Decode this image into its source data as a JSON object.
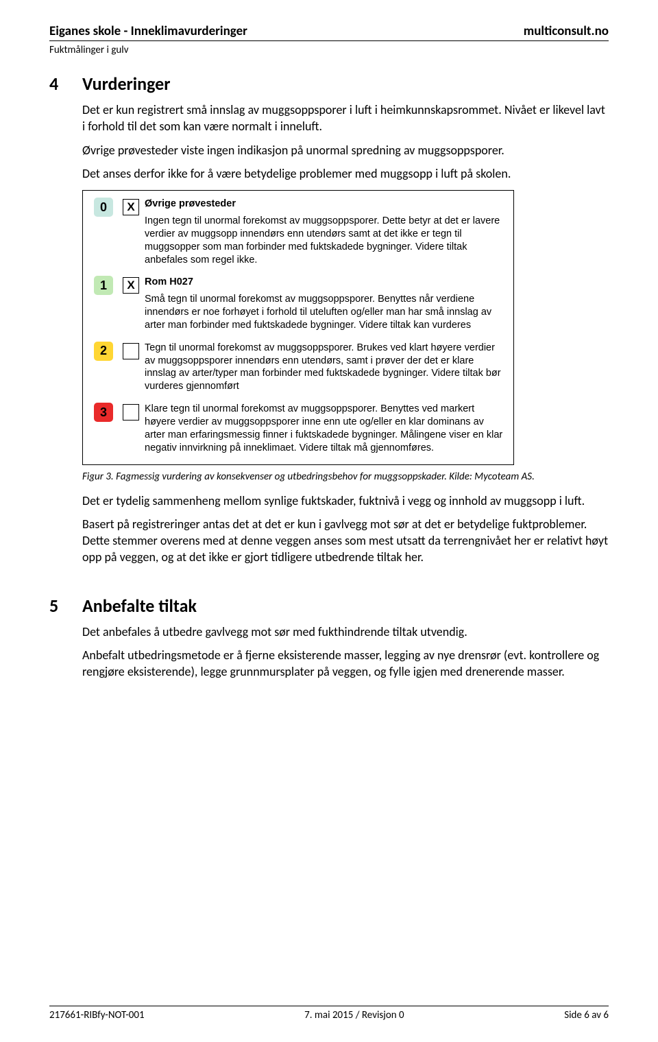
{
  "header": {
    "title_left": "Eiganes skole - Inneklimavurderinger",
    "title_right": "multiconsult.no",
    "subtitle": "Fuktmålinger i gulv"
  },
  "section4": {
    "number": "4",
    "title": "Vurderinger",
    "p1": "Det er kun registrert små innslag av muggsoppsporer i luft i heimkunnskapsrommet. Nivået er likevel lavt i forhold til det som kan være normalt i inneluft.",
    "p2": "Øvrige prøvesteder viste ingen indikasjon på unormal spredning av muggsoppsporer.",
    "p3": "Det anses derfor ikke for å være betydelige problemer med muggsopp i luft på skolen.",
    "caption": "Figur 3. Fagmessig vurdering av konsekvenser og utbedringsbehov for muggsoppskader. Kilde: Mycoteam AS.",
    "p4": "Det er tydelig sammenheng mellom synlige fuktskader, fuktnivå i vegg og innhold av muggsopp i luft.",
    "p5": "Basert på registreringer antas det at det er kun i gavlvegg mot sør at det er betydelige fuktproblemer. Dette stemmer overens med at denne veggen anses som mest utsatt da terrengnivået her er relativt høyt opp på veggen, og at det ikke er gjort tidligere utbedrende tiltak her."
  },
  "figure": {
    "rows": [
      {
        "badge": "0",
        "badge_bg": "#c7e7e0",
        "checked": true,
        "label": "Øvrige prøvesteder",
        "desc": "Ingen tegn til unormal forekomst av muggsoppsporer. Dette betyr at det er lavere verdier av muggsopp innendørs enn utendørs samt at det ikke er tegn til muggsopper som man forbinder med fuktskadede bygninger. Videre tiltak anbefales som regel ikke."
      },
      {
        "badge": "1",
        "badge_bg": "#c1e9b4",
        "checked": true,
        "label": "Rom H027",
        "desc": "Små tegn til unormal forekomst av muggsoppsporer. Benyttes når verdiene innendørs er noe forhøyet i forhold til uteluften og/eller man har små innslag av arter man forbinder med fuktskadede bygninger. Videre tiltak kan vurderes"
      },
      {
        "badge": "2",
        "badge_bg": "#ffd633",
        "checked": false,
        "label": "",
        "desc": "Tegn til unormal forekomst av muggsoppsporer. Brukes ved klart høyere verdier av muggsoppsporer innendørs enn utendørs, samt i prøver der det er klare innslag av arter/typer man forbinder med fuktskadede bygninger. Videre tiltak bør vurderes gjennomført"
      },
      {
        "badge": "3",
        "badge_bg": "#e92a2a",
        "checked": false,
        "label": "",
        "desc": "Klare tegn til unormal forekomst av muggsoppsporer. Benyttes ved markert høyere verdier av muggsoppsporer inne enn ute og/eller en klar dominans av arter man erfaringsmessig finner i fuktskadede bygninger. Målingene viser en klar negativ innvirkning på inneklimaet. Videre tiltak må gjennomføres."
      }
    ]
  },
  "section5": {
    "number": "5",
    "title": "Anbefalte tiltak",
    "p1": "Det anbefales å utbedre gavlvegg mot sør med fukthindrende tiltak utvendig.",
    "p2": "Anbefalt utbedringsmetode er å fjerne eksisterende masser, legging av nye drensrør (evt. kontrollere og rengjøre eksisterende), legge grunnmursplater på veggen, og fylle igjen med drenerende masser."
  },
  "footer": {
    "left": "217661-RIBfy-NOT-001",
    "center": "7. mai 2015 / Revisjon 0",
    "right": "Side 6 av 6"
  }
}
